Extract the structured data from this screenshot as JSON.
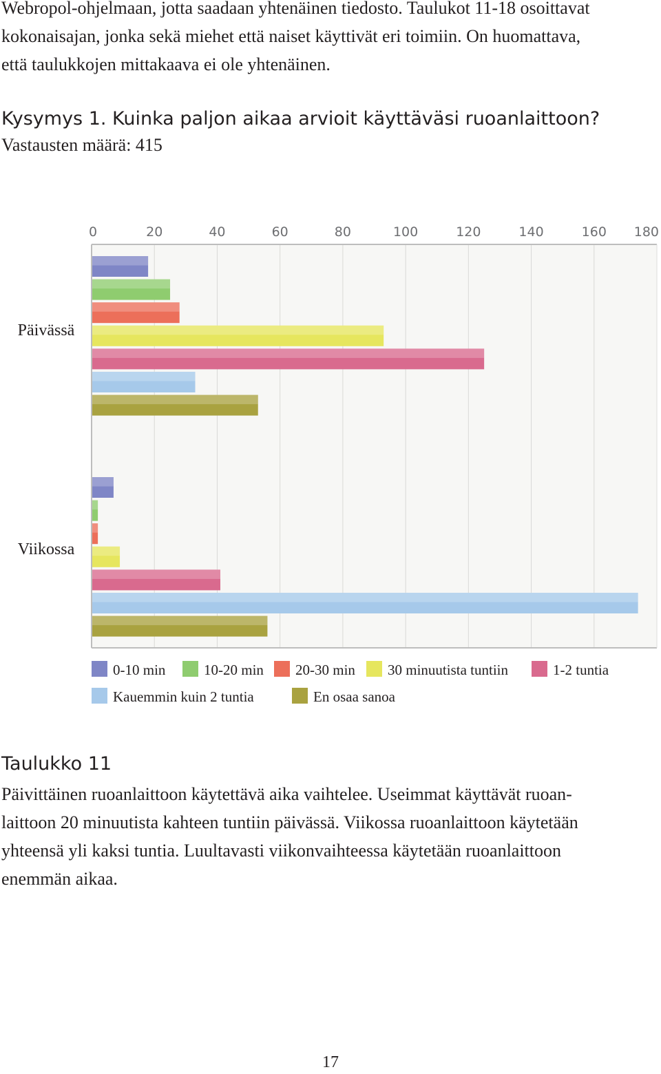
{
  "intro_lines": [
    "Webropol-ohjelmaan, jotta saadaan yhtenäinen tiedosto. Taulukot 11-18 osoittavat",
    "kokonaisajan, jonka sekä miehet että naiset käyttivät eri toimiin. On huomattava,",
    "että taulukkojen mittakaava ei ole yhtenäinen."
  ],
  "question": "Kysymys 1. Kuinka paljon aikaa arvioit käyttäväsi ruoanlaittoon?",
  "responses": "Vastausten määrä: 415",
  "chart_data": {
    "type": "bar",
    "orientation": "horizontal",
    "categories": [
      "Päivässä",
      "Viikossa"
    ],
    "series": [
      {
        "name": "0-10 min",
        "color": "#7f86c6",
        "values": [
          18,
          7
        ]
      },
      {
        "name": "10-20 min",
        "color": "#8fcc6f",
        "values": [
          25,
          2
        ]
      },
      {
        "name": "20-30 min",
        "color": "#ec6f5a",
        "values": [
          28,
          2
        ]
      },
      {
        "name": "30 minuutista tuntiin",
        "color": "#e6e65e",
        "values": [
          93,
          9
        ]
      },
      {
        "name": "1-2 tuntia",
        "color": "#d96a8e",
        "values": [
          125,
          41
        ]
      },
      {
        "name": "Kauemmin kuin 2 tuntia",
        "color": "#a6c9ea",
        "values": [
          33,
          174
        ]
      },
      {
        "name": "En osaa sanoa",
        "color": "#a9a240",
        "values": [
          53,
          56
        ]
      }
    ],
    "x_ticks": [
      "0",
      "20",
      "40",
      "60",
      "80",
      "100",
      "120",
      "140",
      "160",
      "180"
    ],
    "xlim": [
      0,
      180
    ],
    "grid": true,
    "legend": "bottom"
  },
  "table_title": "Taulukko 11",
  "desc_lines": [
    "Päivittäinen ruoanlaittoon käytettävä aika vaihtelee. Useimmat käyttävät ruoan-",
    "laittoon 20 minuutista kahteen tuntiin päivässä.  Viikossa ruoanlaittoon käytetään",
    "yhteensä yli kaksi tuntia. Luultavasti viikonvaihteessa käytetään ruoanlaittoon",
    "enemmän aikaa."
  ],
  "page_number": "17"
}
